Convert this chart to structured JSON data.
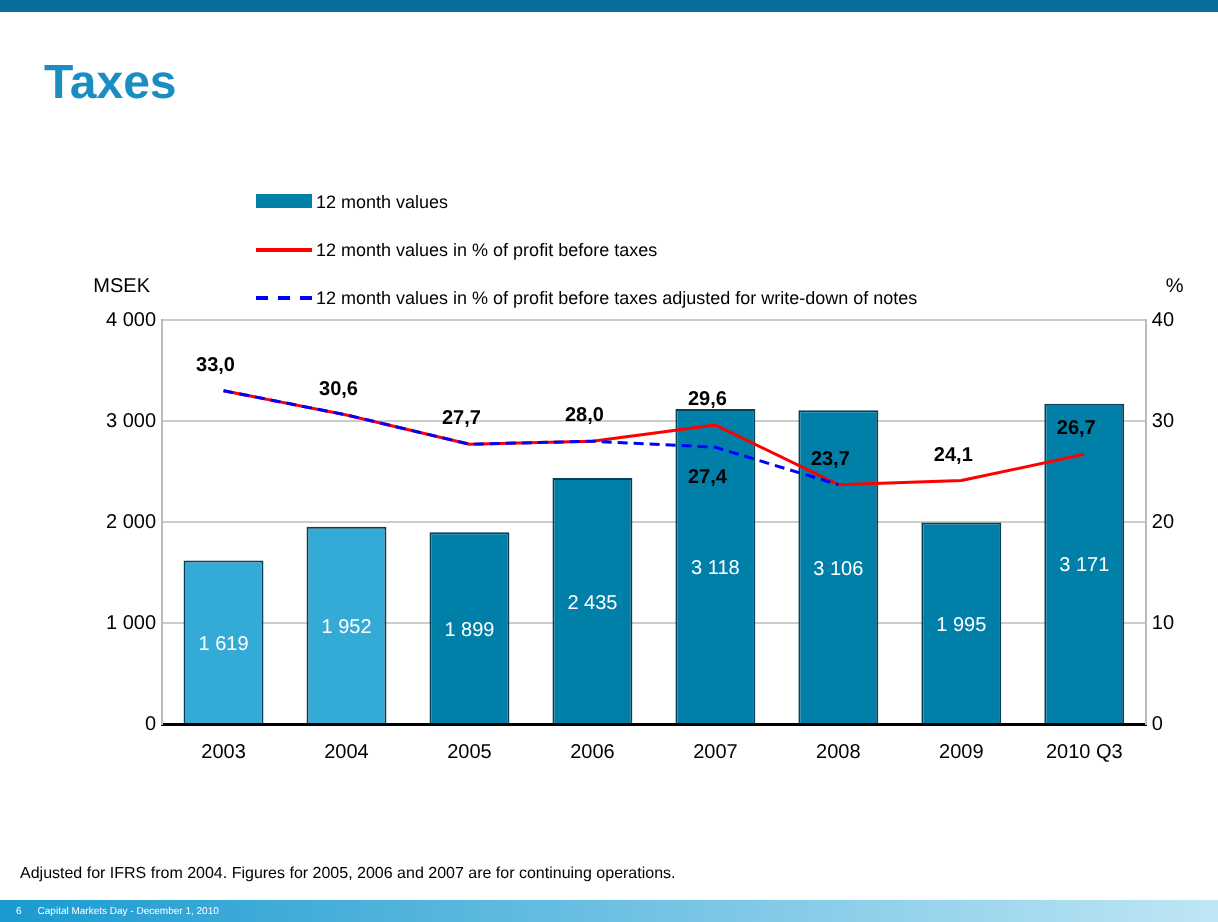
{
  "chart_data": {
    "type": "bar",
    "title": "Taxes",
    "ylabel": "MSEK",
    "y2label": "%",
    "categories": [
      "2003",
      "2004",
      "2005",
      "2006",
      "2007",
      "2008",
      "2009",
      "2010 Q3"
    ],
    "series": [
      {
        "name": "12 month values",
        "color": "#007fa8",
        "colors": [
          "#34aad6",
          "#34aad6",
          "#007fa8",
          "#007fa8",
          "#007fa8",
          "#007fa8",
          "#007fa8",
          "#007fa8"
        ],
        "values": [
          1619,
          1952,
          1899,
          2435,
          3118,
          3106,
          1995,
          3171
        ],
        "value_labels": [
          "1 619",
          "1 952",
          "1 899",
          "2 435",
          "3 118",
          "3 106",
          "1 995",
          "3 171"
        ]
      },
      {
        "name": "12 month values in % of profit before taxes",
        "type": "line",
        "axis": "y2",
        "color": "#ff0000",
        "line_style": "solid",
        "values": [
          33.0,
          30.6,
          27.7,
          28.0,
          29.6,
          23.7,
          24.1,
          26.7
        ],
        "value_labels": [
          "33,0",
          "30,6",
          "27,7",
          "28,0",
          "29,6",
          "23,7",
          "24,1",
          "26,7"
        ]
      },
      {
        "name": "12 month values in % of profit before taxes adjusted for write-down of notes",
        "type": "line",
        "axis": "y2",
        "color": "#0000ff",
        "line_style": "dashed",
        "values": [
          33.0,
          30.6,
          27.7,
          28.0,
          27.4,
          23.7,
          null,
          null
        ],
        "value_labels": [
          null,
          null,
          null,
          null,
          "27,4",
          null,
          null,
          null
        ]
      }
    ],
    "ylim": [
      0,
      4000
    ],
    "yticks": [
      {
        "value": 0,
        "label": "0"
      },
      {
        "value": 1000,
        "label": "1 000"
      },
      {
        "value": 2000,
        "label": "2 000"
      },
      {
        "value": 3000,
        "label": "3 000"
      },
      {
        "value": 4000,
        "label": "4 000"
      }
    ],
    "y2lim": [
      0,
      40
    ],
    "y2ticks": [
      0,
      10,
      20,
      30,
      40
    ],
    "grid": "y",
    "legend": "top",
    "marker": "none",
    "annotations": [
      "Adjusted for IFRS from 2004. Figures for 2005, 2006 and 2007 are for continuing operations.",
      "6",
      "Capital Markets Day - December 1, 2010"
    ]
  }
}
